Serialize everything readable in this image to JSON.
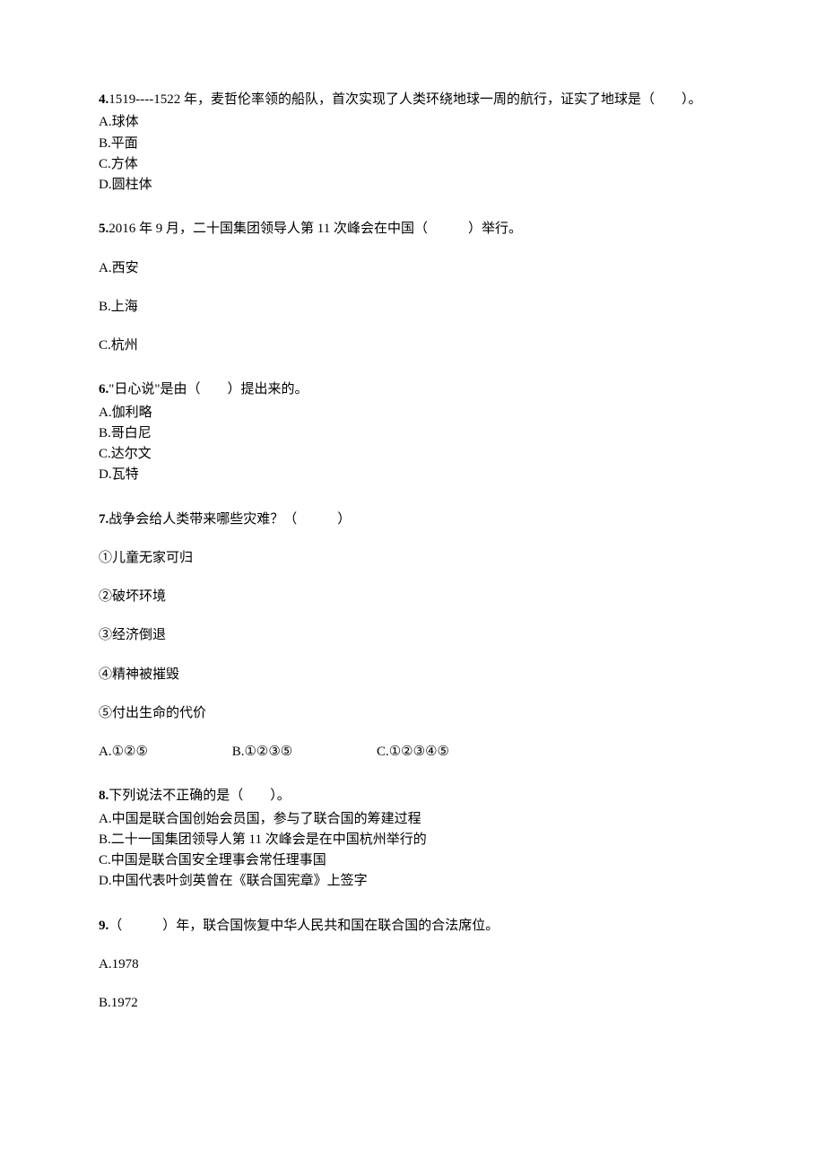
{
  "q4": {
    "num": "4.",
    "stem": "1519----1522 年，麦哲伦率领的船队，首次实现了人类环绕地球一周的航行，证实了地球是（　　）。",
    "a": "A.球体",
    "b": "B.平面",
    "c": "C.方体",
    "d": "D.圆柱体"
  },
  "q5": {
    "num": "5.",
    "stem": "2016 年 9 月，二十国集团领导人第 11 次峰会在中国（　　　）举行。",
    "a": "A.西安",
    "b": "B.上海",
    "c": "C.杭州"
  },
  "q6": {
    "num": "6.",
    "stem": "\"日心说\"是由（　　）提出来的。",
    "a": "A.伽利略",
    "b": "B.哥白尼",
    "c": "C.达尔文",
    "d": "D.瓦特"
  },
  "q7": {
    "num": "7.",
    "stem": "战争会给人类带来哪些灾难？（　　　）",
    "i1": "①儿童无家可归",
    "i2": "②破坏环境",
    "i3": "③经济倒退",
    "i4": "④精神被摧毁",
    "i5": "⑤付出生命的代价",
    "a": "A.①②⑤",
    "b": "B.①②③⑤",
    "c": "C.①②③④⑤"
  },
  "q8": {
    "num": "8.",
    "stem": "下列说法不正确的是（　　）。",
    "a": "A.中国是联合国创始会员国，参与了联合国的筹建过程",
    "b": "B.二十一国集团领导人第 11 次峰会是在中国杭州举行的",
    "c": "C.中国是联合国安全理事会常任理事国",
    "d": "D.中国代表叶剑英曾在《联合国宪章》上签字"
  },
  "q9": {
    "num": "9.",
    "stem": "（　　　）年，联合国恢复中华人民共和国在联合国的合法席位。",
    "a": "A.1978",
    "b": "B.1972"
  }
}
